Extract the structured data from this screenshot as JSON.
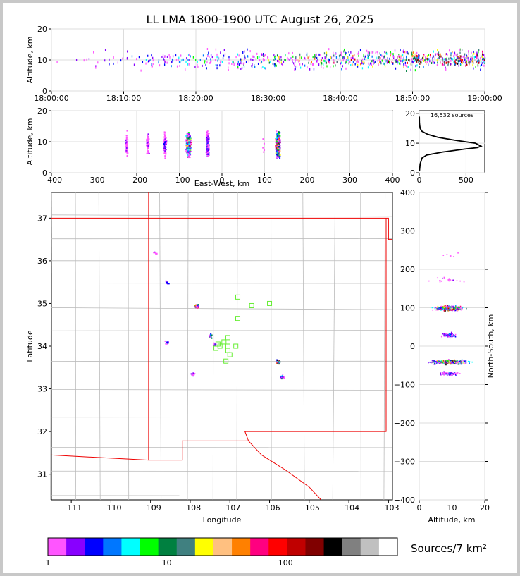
{
  "title": "LL LMA 1800-1900 UTC August 26, 2025",
  "colorbar_title": "Sources/7 km²",
  "source_count_label": "16,532 sources",
  "chart_data": [
    {
      "id": "time_altitude",
      "type": "scatter",
      "ylabel": "Altitude, km",
      "xlabel": "",
      "xticks": [
        "18:00:00",
        "18:10:00",
        "18:20:00",
        "18:30:00",
        "18:40:00",
        "18:50:00",
        "19:00:00"
      ],
      "xlim": [
        0,
        60
      ],
      "ylim": [
        0,
        20
      ],
      "yticks": [
        0,
        10,
        20
      ],
      "grid": true
    },
    {
      "id": "ew_altitude",
      "type": "scatter",
      "xlabel": "East-West, km",
      "ylabel": "Altitude, km",
      "xlim": [
        -400,
        400
      ],
      "ylim": [
        0,
        20
      ],
      "xticks": [
        -400,
        -300,
        -200,
        -100,
        0,
        100,
        200,
        300,
        400
      ],
      "yticks": [
        0,
        10,
        20
      ],
      "grid": true
    },
    {
      "id": "altitude_histogram",
      "type": "line",
      "xlim": [
        0,
        700
      ],
      "ylim": [
        0,
        21
      ],
      "xticks": [
        0,
        500
      ],
      "yticks": [
        0,
        10,
        20
      ],
      "x": [
        2,
        10,
        30,
        80,
        250,
        480,
        620,
        660,
        600,
        380,
        200,
        90,
        30,
        10,
        5,
        2,
        1
      ],
      "y": [
        0.5,
        3,
        5,
        6,
        7,
        8,
        8.5,
        9,
        10,
        11,
        12,
        13,
        14,
        15,
        16,
        17,
        19
      ]
    },
    {
      "id": "plan_view",
      "type": "scatter",
      "xlabel": "Longitude",
      "ylabel": "Latitude",
      "xlim": [
        -111.5,
        -102.9
      ],
      "ylim": [
        30.4,
        37.6
      ],
      "xticks": [
        -111,
        -110,
        -109,
        -108,
        -107,
        -106,
        -105,
        -104,
        -103
      ],
      "yticks": [
        31,
        32,
        33,
        34,
        35,
        36,
        37
      ],
      "clusters": [
        {
          "lon": -108.9,
          "lat": 36.2
        },
        {
          "lon": -108.6,
          "lat": 35.5
        },
        {
          "lon": -107.85,
          "lat": 34.95
        },
        {
          "lon": -108.6,
          "lat": 34.1
        },
        {
          "lon": -107.5,
          "lat": 34.25
        },
        {
          "lon": -107.95,
          "lat": 33.35
        },
        {
          "lon": -105.8,
          "lat": 33.65
        },
        {
          "lon": -105.7,
          "lat": 33.3
        },
        {
          "lon": -107.4,
          "lat": 34.05
        }
      ],
      "stations": [
        [
          -106.8,
          35.15
        ],
        [
          -106.45,
          34.95
        ],
        [
          -106.0,
          35.0
        ],
        [
          -106.8,
          34.65
        ],
        [
          -107.05,
          34.2
        ],
        [
          -107.05,
          34.0
        ],
        [
          -106.85,
          34.0
        ],
        [
          -107.0,
          33.8
        ],
        [
          -107.1,
          33.65
        ],
        [
          -107.25,
          34.0
        ],
        [
          -107.35,
          33.95
        ],
        [
          -107.3,
          34.05
        ],
        [
          -107.15,
          34.1
        ],
        [
          -107.05,
          33.9
        ]
      ]
    },
    {
      "id": "altitude_ns",
      "type": "scatter",
      "xlabel": "Altitude, km",
      "ylabel": "North-South, km",
      "xlim": [
        0,
        20
      ],
      "ylim": [
        -400,
        400
      ],
      "xticks": [
        0,
        10,
        20
      ],
      "yticks": [
        -400,
        -300,
        -200,
        -100,
        0,
        100,
        200,
        300,
        400
      ]
    }
  ],
  "colorbar": {
    "ticks": [
      "1",
      "10",
      "100"
    ],
    "colors": [
      "#ff55ff",
      "#8800ff",
      "#0000ff",
      "#0077ff",
      "#00ffff",
      "#00ff00",
      "#008040",
      "#408080",
      "#ffff00",
      "#ffc080",
      "#ff8000",
      "#ff0080",
      "#ff0000",
      "#c00000",
      "#800000",
      "#000000",
      "#808080",
      "#c0c0c0",
      "#ffffff"
    ]
  }
}
